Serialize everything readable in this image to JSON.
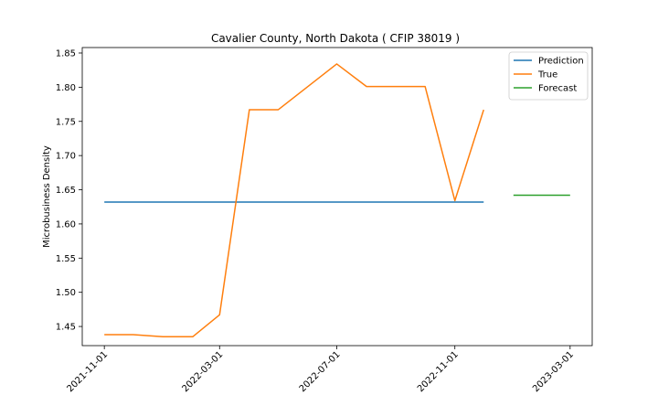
{
  "chart_data": {
    "type": "line",
    "title": "Cavalier County, North Dakota ( CFIP 38019 )",
    "xlabel": "",
    "ylabel": "Microbusiness Density",
    "x_ticks": [
      "2021-11-01",
      "2022-03-01",
      "2022-07-01",
      "2022-11-01",
      "2023-03-01"
    ],
    "y_ticks": [
      "1.45",
      "1.50",
      "1.55",
      "1.60",
      "1.65",
      "1.70",
      "1.75",
      "1.80",
      "1.85"
    ],
    "ylim": [
      1.422,
      1.858
    ],
    "xlim": [
      "2021-10-09",
      "2023-03-24"
    ],
    "grid": false,
    "legend_position": "top-right",
    "series": [
      {
        "name": "Prediction",
        "color": "#1f77b4",
        "points": [
          {
            "x": "2021-11-01",
            "y": 1.632
          },
          {
            "x": "2022-12-01",
            "y": 1.632
          }
        ]
      },
      {
        "name": "True",
        "color": "#ff7f0e",
        "points": [
          {
            "x": "2021-11-01",
            "y": 1.438
          },
          {
            "x": "2021-12-01",
            "y": 1.438
          },
          {
            "x": "2022-01-01",
            "y": 1.435
          },
          {
            "x": "2022-02-01",
            "y": 1.435
          },
          {
            "x": "2022-03-01",
            "y": 1.467
          },
          {
            "x": "2022-04-01",
            "y": 1.767
          },
          {
            "x": "2022-05-01",
            "y": 1.767
          },
          {
            "x": "2022-07-01",
            "y": 1.834
          },
          {
            "x": "2022-08-01",
            "y": 1.801
          },
          {
            "x": "2022-10-01",
            "y": 1.801
          },
          {
            "x": "2022-11-01",
            "y": 1.634
          },
          {
            "x": "2022-12-01",
            "y": 1.767
          }
        ]
      },
      {
        "name": "Forecast",
        "color": "#2ca02c",
        "points": [
          {
            "x": "2023-01-01",
            "y": 1.642
          },
          {
            "x": "2023-03-01",
            "y": 1.642
          }
        ]
      }
    ]
  }
}
